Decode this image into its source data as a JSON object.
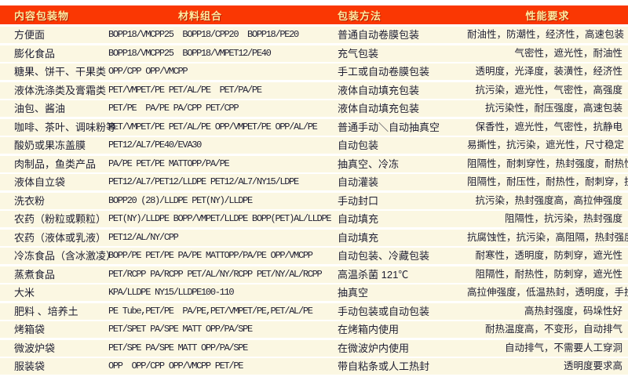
{
  "colors": {
    "header_bg": "#FA3703",
    "header_text": "#FFE9A0",
    "row_bg": "#FBF7E2",
    "body_text": "#1E1E32"
  },
  "table": {
    "headers": [
      {
        "key": "contents",
        "label": "内容包装物"
      },
      {
        "key": "materials",
        "label": "材料组合"
      },
      {
        "key": "method",
        "label": "包装方法"
      },
      {
        "key": "requirements",
        "label": "性能要求"
      }
    ],
    "rows": [
      {
        "item": "方便面",
        "materials": "BOPP18/VMCPP25  BOPP18/CPP20  BOPP18/PE20",
        "method": "普通自动卷膜包装",
        "requirements": "耐油性，防潮性，经济性，高速包装"
      },
      {
        "item": "膨化食品",
        "materials": "BOPP18/VMCPP25  BOPP18/VMPET12/PE40",
        "method": "充气包装",
        "requirements": "气密性，遮光性，耐油性"
      },
      {
        "item": "糖果、饼干、干果类",
        "materials": "OPP/CPP OPP/VMCPP",
        "method": "手工或自动卷膜包装",
        "requirements": "透明度，光泽度，装潢性，经济性"
      },
      {
        "item": "液体洗涤类及膏霜类",
        "materials": "PET/VMPET/PE PET/AL/PE  PET/PA/PE",
        "method": "液体自动填充包装",
        "requirements": "抗污染，遮光性，气密性，高强度"
      },
      {
        "item": "油包、酱油",
        "materials": "PET/PE  PA/PE PA/CPP PET/CPP",
        "method": "液体自动填充包装",
        "requirements": "抗污染性，耐压强度，高速包装"
      },
      {
        "item": "咖啡、茶叶、调味粉等",
        "materials": "PET/VMPET/PE PET/AL/PE OPP/VMPET/PE OPP/AL/PE",
        "method": "普通手动＼自动抽真空",
        "requirements": "保香性，遮光性，气密性，抗静电"
      },
      {
        "item": "酸奶或果冻盖膜",
        "materials": "PET12/AL7/PE40/EVA30",
        "method": "自动包装",
        "requirements": "易撕性，抗污染，遮光性，尺寸稳定"
      },
      {
        "item": "肉制品，鱼类产品",
        "materials": "PA/PE PET/PE MATTOPP/PA/PE",
        "method": "抽真空、冷冻",
        "requirements": "阻隔性，耐刺穿性，热封强度，耐热性"
      },
      {
        "item": "液体自立袋",
        "materials": "PET12/AL7/PET12/LLDPE PET12/AL7/NY15/LDPE",
        "method": "自动灌装",
        "requirements": "阻隔性，耐压性，耐热性，耐刺穿，抗污染"
      },
      {
        "item": "洗衣粉",
        "materials": "BOPP20 (28)/LLDPE PET(NY)/LLDPE",
        "method": "手动封口",
        "requirements": "抗污染，热封强度高，高拉伸强度"
      },
      {
        "item": "农药（粉粒或颗粒）",
        "materials": "PET(NY)/LLDPE BOPP/VMPET/LLDPE BOPP(PET)AL/LLDPE",
        "method": "自动填充",
        "requirements": "阻隔性，抗污染，热封强度"
      },
      {
        "item": "农药（液体或乳液）",
        "materials": "PET12/AL/NY/CPP",
        "method": "自动填充",
        "requirements": "抗腐蚀性，抗污染，高阻隔，热封强度"
      },
      {
        "item": "冷冻食品（含冰激凌）",
        "materials": "BOPP/PE PET/PE PA/PE MATTOPP/PA/PE OPP/VMCPP",
        "method": "自动包装、冷藏包装",
        "requirements": "耐寒性，透明度，防刺穿，遮光性"
      },
      {
        "item": "蒸煮食品",
        "materials": "PET/RCPP PA/RCPP PET/AL/NY/RCPP PET/NY/AL/RCPP",
        "method": "高温杀菌 121℃",
        "requirements": "阻隔性，耐热性，防刺穿，遮光性"
      },
      {
        "item": "大米",
        "materials": "KPA/LLDPE NY15/LLDPE100-110",
        "method": "抽真空",
        "requirements": "高拉伸强度，低温热封，透明度，手挽强度高"
      },
      {
        "item": "肥料 、培养土",
        "materials": "PE Tube,PET/PE  PA/PE,PET/VMPET/PE,PET/AL/PE",
        "method": "手动包装或自动包装",
        "requirements": "高热封强度，码垛性好"
      },
      {
        "item": "烤箱袋",
        "materials": "PET/SPET PA/SPE MATT OPP/PA/SPE",
        "method": "在烤箱内使用",
        "requirements": "耐热温度高，不变形，自动排气"
      },
      {
        "item": "微波炉袋",
        "materials": "PET/SPE PA/SPE MATT OPP/PA/SPE",
        "method": "在微波炉内使用",
        "requirements": "自动排气，不需要人工穿洞"
      },
      {
        "item": "服装袋",
        "materials": "OPP  OPP/CPP OPP/VMCPP PET/PE",
        "method": "带自粘条或人工热封",
        "requirements": "透明度要求高"
      }
    ]
  }
}
